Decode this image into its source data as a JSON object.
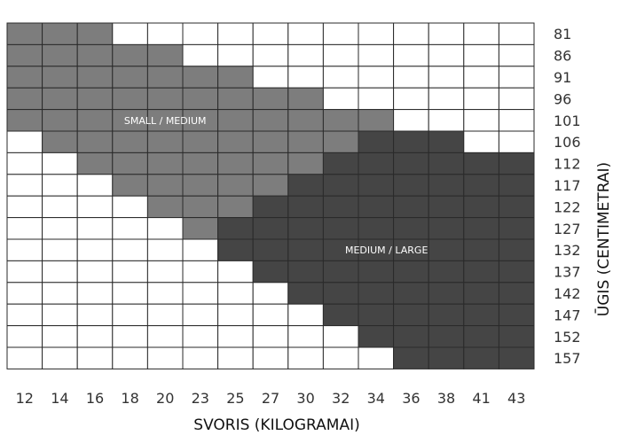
{
  "chart_data": {
    "type": "heatmap",
    "title": "",
    "xlabel": "SVORIS (KILOGRAMAI)",
    "ylabel": "ŪGIS (CENTIMETRAI)",
    "x_ticks": [
      "12",
      "14",
      "16",
      "18",
      "20",
      "23",
      "25",
      "27",
      "30",
      "32",
      "34",
      "36",
      "38",
      "41",
      "43"
    ],
    "y_ticks": [
      "81",
      "86",
      "91",
      "96",
      "101",
      "106",
      "112",
      "117",
      "122",
      "127",
      "132",
      "137",
      "142",
      "147",
      "152",
      "157"
    ],
    "categories": [
      {
        "code": 0,
        "name": "",
        "color": "#ffffff"
      },
      {
        "code": 1,
        "name": "SMALL / MEDIUM",
        "color": "#7d7d7d"
      },
      {
        "code": 2,
        "name": "MEDIUM / LARGE",
        "color": "#454545"
      }
    ],
    "grid": [
      [
        1,
        1,
        1,
        0,
        0,
        0,
        0,
        0,
        0,
        0,
        0,
        0,
        0,
        0,
        0
      ],
      [
        1,
        1,
        1,
        1,
        1,
        0,
        0,
        0,
        0,
        0,
        0,
        0,
        0,
        0,
        0
      ],
      [
        1,
        1,
        1,
        1,
        1,
        1,
        1,
        0,
        0,
        0,
        0,
        0,
        0,
        0,
        0
      ],
      [
        1,
        1,
        1,
        1,
        1,
        1,
        1,
        1,
        1,
        0,
        0,
        0,
        0,
        0,
        0
      ],
      [
        1,
        1,
        1,
        1,
        1,
        1,
        1,
        1,
        1,
        1,
        1,
        0,
        0,
        0,
        0
      ],
      [
        0,
        1,
        1,
        1,
        1,
        1,
        1,
        1,
        1,
        1,
        2,
        2,
        2,
        0,
        0
      ],
      [
        0,
        0,
        1,
        1,
        1,
        1,
        1,
        1,
        1,
        2,
        2,
        2,
        2,
        2,
        2
      ],
      [
        0,
        0,
        0,
        1,
        1,
        1,
        1,
        1,
        2,
        2,
        2,
        2,
        2,
        2,
        2
      ],
      [
        0,
        0,
        0,
        0,
        1,
        1,
        1,
        2,
        2,
        2,
        2,
        2,
        2,
        2,
        2
      ],
      [
        0,
        0,
        0,
        0,
        0,
        1,
        2,
        2,
        2,
        2,
        2,
        2,
        2,
        2,
        2
      ],
      [
        0,
        0,
        0,
        0,
        0,
        0,
        2,
        2,
        2,
        2,
        2,
        2,
        2,
        2,
        2
      ],
      [
        0,
        0,
        0,
        0,
        0,
        0,
        0,
        2,
        2,
        2,
        2,
        2,
        2,
        2,
        2
      ],
      [
        0,
        0,
        0,
        0,
        0,
        0,
        0,
        0,
        2,
        2,
        2,
        2,
        2,
        2,
        2
      ],
      [
        0,
        0,
        0,
        0,
        0,
        0,
        0,
        0,
        0,
        2,
        2,
        2,
        2,
        2,
        2
      ],
      [
        0,
        0,
        0,
        0,
        0,
        0,
        0,
        0,
        0,
        0,
        2,
        2,
        2,
        2,
        2
      ],
      [
        0,
        0,
        0,
        0,
        0,
        0,
        0,
        0,
        0,
        0,
        0,
        2,
        2,
        2,
        2
      ]
    ],
    "annotations": [
      {
        "text": "SMALL / MEDIUM",
        "row": 4,
        "col": 4.5
      },
      {
        "text": "MEDIUM / LARGE",
        "row": 10,
        "col": 10.8
      }
    ],
    "grid_lines": true,
    "legend": "none"
  }
}
